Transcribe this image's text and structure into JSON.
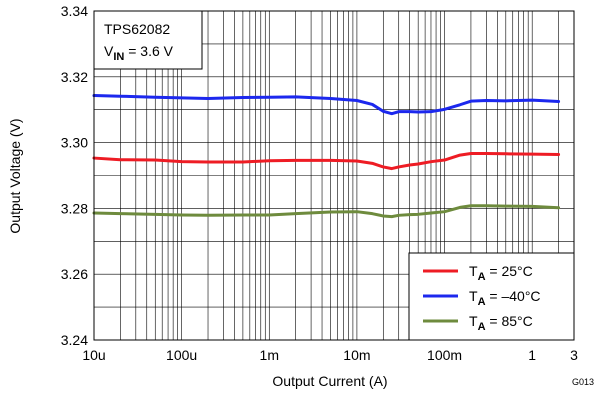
{
  "chart_data": {
    "type": "line",
    "xlabel": "Output Current (A)",
    "ylabel": "Output Voltage (V)",
    "x_scale": "log",
    "xlim": [
      1e-05,
      3
    ],
    "ylim": [
      3.24,
      3.34
    ],
    "x_ticks": [
      {
        "value": 1e-05,
        "label": "10u"
      },
      {
        "value": 0.0001,
        "label": "100u"
      },
      {
        "value": 0.001,
        "label": "1m"
      },
      {
        "value": 0.01,
        "label": "10m"
      },
      {
        "value": 0.1,
        "label": "100m"
      },
      {
        "value": 1,
        "label": "1"
      },
      {
        "value": 3,
        "label": "3"
      }
    ],
    "y_ticks": [
      {
        "value": 3.24,
        "label": "3.24"
      },
      {
        "value": 3.26,
        "label": "3.26"
      },
      {
        "value": 3.28,
        "label": "3.28"
      },
      {
        "value": 3.3,
        "label": "3.30"
      },
      {
        "value": 3.32,
        "label": "3.32"
      },
      {
        "value": 3.34,
        "label": "3.34"
      }
    ],
    "grid": true,
    "legend_position": "bottom-right",
    "annotation": {
      "device": "TPS62082",
      "vin_prefix": "V",
      "vin_sub": "IN",
      "vin_value": " = 3.6 V"
    },
    "figure_id": "G013",
    "series": [
      {
        "name_prefix": "T",
        "name_sub": "A",
        "name_value": " = 25°C",
        "color": "#ee1c24",
        "x": [
          1e-05,
          2e-05,
          5e-05,
          0.0001,
          0.0002,
          0.0005,
          0.001,
          0.002,
          0.005,
          0.01,
          0.015,
          0.02,
          0.025,
          0.03,
          0.04,
          0.05,
          0.07,
          0.1,
          0.15,
          0.2,
          0.3,
          0.5,
          1,
          2
        ],
        "values": [
          3.2953,
          3.2948,
          3.2947,
          3.2942,
          3.2941,
          3.2941,
          3.2945,
          3.2946,
          3.2946,
          3.2944,
          3.2937,
          3.2926,
          3.2921,
          3.2926,
          3.2932,
          3.2935,
          3.2942,
          3.2947,
          3.2962,
          3.2967,
          3.2967,
          3.2966,
          3.2965,
          3.2964
        ]
      },
      {
        "name_prefix": "T",
        "name_sub": "A",
        "name_value": " = –40°C",
        "color": "#1c28ee",
        "x": [
          1e-05,
          2e-05,
          5e-05,
          0.0001,
          0.0002,
          0.0005,
          0.001,
          0.002,
          0.005,
          0.01,
          0.015,
          0.02,
          0.025,
          0.03,
          0.04,
          0.05,
          0.07,
          0.1,
          0.15,
          0.2,
          0.3,
          0.5,
          1,
          2
        ],
        "values": [
          3.3143,
          3.3141,
          3.3138,
          3.3136,
          3.3134,
          3.3137,
          3.3138,
          3.3139,
          3.3134,
          3.3128,
          3.3116,
          3.3095,
          3.3088,
          3.3094,
          3.3094,
          3.3093,
          3.3094,
          3.3101,
          3.3115,
          3.3126,
          3.3128,
          3.3127,
          3.3129,
          3.3125
        ]
      },
      {
        "name_prefix": "T",
        "name_sub": "A",
        "name_value": " = 85°C",
        "color": "#6e8b3d",
        "x": [
          1e-05,
          2e-05,
          5e-05,
          0.0001,
          0.0002,
          0.0005,
          0.001,
          0.002,
          0.005,
          0.01,
          0.015,
          0.02,
          0.025,
          0.03,
          0.04,
          0.05,
          0.07,
          0.1,
          0.15,
          0.2,
          0.3,
          0.5,
          1,
          2
        ],
        "values": [
          3.2786,
          3.2784,
          3.2782,
          3.278,
          3.2779,
          3.278,
          3.278,
          3.2784,
          3.2789,
          3.279,
          3.2784,
          3.2777,
          3.2775,
          3.2779,
          3.2781,
          3.2782,
          3.2786,
          3.279,
          3.2803,
          3.2808,
          3.2808,
          3.2807,
          3.2806,
          3.2802
        ]
      }
    ]
  }
}
